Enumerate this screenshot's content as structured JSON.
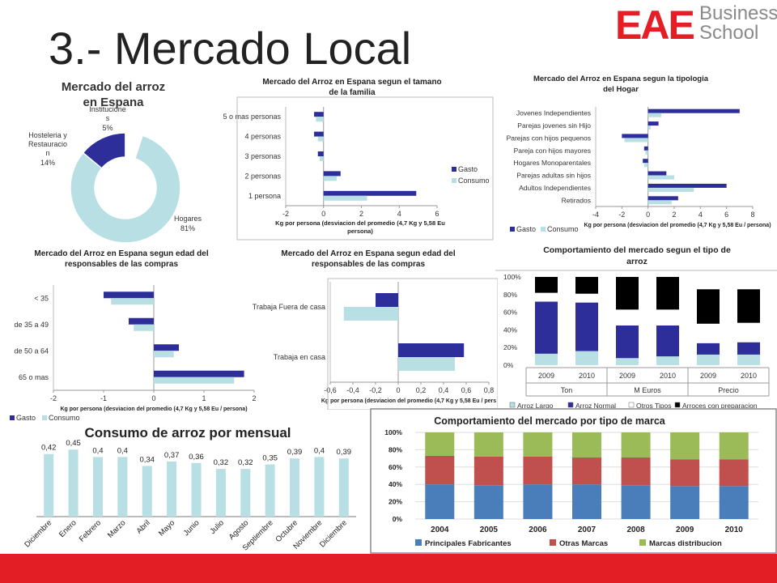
{
  "slide": {
    "title": "3.- Mercado Local",
    "brand_main": "EAE",
    "brand_line1": "Business",
    "brand_line2": "School",
    "colors": {
      "brand_red": "#e31e24",
      "gasto": "#2e2e9a",
      "consumo": "#b7dfe4",
      "black": "#000000",
      "blue_marca": "#4a7ebb",
      "red_marca": "#c0504d",
      "green_marca": "#9bbb59"
    }
  },
  "chart_data": [
    {
      "id": "donut",
      "type": "pie",
      "title": "Mercado del arroz en Espana",
      "slices": [
        {
          "label": "Hogares",
          "value": 81,
          "pct": "81%"
        },
        {
          "label": "Hosteleria y Restauracion",
          "value": 14,
          "pct": "14%"
        },
        {
          "label": "Instituciones",
          "value": 5,
          "pct": "5%"
        }
      ]
    },
    {
      "id": "family",
      "type": "bar",
      "orientation": "horizontal",
      "title_line1": "Mercado del Arroz en Espana segun el tamano",
      "title_line2": "de la familia",
      "categories": [
        "5 o mas  personas",
        "4 personas",
        "3 personas",
        "2 personas",
        "1 persona"
      ],
      "series": [
        {
          "name": "Gasto",
          "values": [
            -0.5,
            -0.5,
            -0.3,
            0.9,
            4.9
          ]
        },
        {
          "name": "Consumo",
          "values": [
            -0.4,
            -0.3,
            -0.2,
            0.7,
            2.3
          ]
        }
      ],
      "xlim": [
        -2,
        6
      ],
      "ticks": [
        "-2",
        "0",
        "2",
        "4",
        "6"
      ],
      "xlabel_line1": "Kg por persona (desviacion del promedio (4,7 Kg y 5,58 Eu",
      "xlabel_line2": "persona)"
    },
    {
      "id": "hogar",
      "type": "bar",
      "orientation": "horizontal",
      "title_line1": "Mercado del Arroz en Espana segun la tipologia",
      "title_line2": "del Hogar",
      "categories": [
        "Jovenes Independientes",
        "Parejas jovenes sin Hijo",
        "Parejas con hijos pequenos",
        "Pareja con hijos mayores",
        "Hogares Monoparentales",
        "Parejas adultas sin hijos",
        "Adultos Independientes",
        "Retirados"
      ],
      "series": [
        {
          "name": "Gasto",
          "values": [
            7,
            0.8,
            -2,
            -0.3,
            -0.4,
            1.4,
            6,
            2.3
          ]
        },
        {
          "name": "Consumo",
          "values": [
            1,
            0.2,
            -1.8,
            -0.2,
            -0.3,
            2,
            3.5,
            1.8
          ]
        }
      ],
      "xlim": [
        -4,
        8
      ],
      "ticks": [
        "-4",
        "-2",
        "0",
        "2",
        "4",
        "6",
        "8"
      ],
      "xlabel": "Kg por persona (desviacion del promedio (4,7 Kg y 5,58 Eu / persona)"
    },
    {
      "id": "edad",
      "type": "bar",
      "orientation": "horizontal",
      "title_line1": "Mercado del Arroz en Espana segun edad del",
      "title_line2": "responsables de las compras",
      "categories": [
        "< 35",
        "de 35 a 49",
        "de 50 a 64",
        "65 o mas"
      ],
      "series": [
        {
          "name": "Gasto",
          "values": [
            -1,
            -0.5,
            0.5,
            1.8
          ]
        },
        {
          "name": "Consumo",
          "values": [
            -0.85,
            -0.4,
            0.4,
            1.6
          ]
        }
      ],
      "xlim": [
        -2,
        2
      ],
      "ticks": [
        "-2",
        "-1",
        "0",
        "1",
        "2"
      ],
      "xlabel": "Kg por persona (desviacion del promedio (4,7 Kg y 5,58 Eu / persona)"
    },
    {
      "id": "trabajo",
      "type": "bar",
      "orientation": "horizontal",
      "title_line1": "Mercado del Arroz en Espana segun edad del",
      "title_line2": "responsables de las compras",
      "categories": [
        "Trabaja Fuera de casa",
        "Trabaja en casa"
      ],
      "series": [
        {
          "name": "Gasto",
          "values": [
            -0.2,
            0.58
          ]
        },
        {
          "name": "Consumo",
          "values": [
            -0.48,
            0.5
          ]
        }
      ],
      "xlim": [
        -0.6,
        0.8
      ],
      "ticks": [
        "-0,6",
        "-0,4",
        "-0,2",
        "0",
        "0,2",
        "0,4",
        "0,6",
        "0,8"
      ],
      "xlabel": "Kg por persona (desviacion del promedio (4,7 Kg y 5,58 Eu / pers"
    },
    {
      "id": "tipo",
      "type": "bar",
      "stacked": true,
      "title_line1": "Comportamiento del mercado segun el tipo de",
      "title_line2": "arroz",
      "categories": [
        "2009",
        "2010",
        "2009",
        "2010",
        "2009",
        "2010"
      ],
      "groups": [
        "Ton",
        "M Euros",
        "Precio"
      ],
      "series": [
        {
          "name": "Arroz Largo",
          "values": [
            13,
            16,
            8,
            10,
            12,
            12
          ]
        },
        {
          "name": "Arroz Normal",
          "values": [
            59,
            55,
            37,
            35,
            13,
            14
          ]
        },
        {
          "name": "Otros Tipos",
          "values": [
            10,
            10,
            18,
            18,
            22,
            22
          ]
        },
        {
          "name": "Arroces con preparacion",
          "values": [
            18,
            19,
            37,
            37,
            39,
            38
          ]
        }
      ],
      "ylim": [
        0,
        100
      ],
      "ticks": [
        "0%",
        "20%",
        "40%",
        "60%",
        "80%",
        "100%"
      ]
    },
    {
      "id": "mensual",
      "type": "bar",
      "title": "Consumo de arroz por mensual",
      "categories": [
        "Diciembre",
        "Enero",
        "Febrero",
        "Marzo",
        "Abril",
        "Mayo",
        "Junio",
        "Julio",
        "Agosto",
        "Septiembre",
        "Octubre",
        "Noviembre",
        "Diciembre"
      ],
      "values": [
        0.42,
        0.45,
        0.4,
        0.4,
        0.34,
        0.37,
        0.36,
        0.32,
        0.32,
        0.35,
        0.39,
        0.4,
        0.39
      ],
      "labels": [
        "0,42",
        "0,45",
        "0,4",
        "0,4",
        "0,34",
        "0,37",
        "0,36",
        "0,32",
        "0,32",
        "0,35",
        "0,39",
        "0,4",
        "0,39"
      ]
    },
    {
      "id": "marca",
      "type": "bar",
      "stacked": true,
      "title": "Comportamiento del mercado por tipo de marca",
      "categories": [
        "2004",
        "2005",
        "2006",
        "2007",
        "2008",
        "2009",
        "2010"
      ],
      "series": [
        {
          "name": "Principales Fabricantes",
          "values": [
            40,
            39,
            40,
            40,
            39,
            38,
            38
          ]
        },
        {
          "name": "Otras Marcas",
          "values": [
            33,
            33,
            32,
            31,
            32,
            31,
            31
          ]
        },
        {
          "name": "Marcas distribucion",
          "values": [
            27,
            28,
            28,
            29,
            29,
            31,
            31
          ]
        }
      ],
      "ylim": [
        0,
        100
      ],
      "ticks": [
        "0%",
        "20%",
        "40%",
        "60%",
        "80%",
        "100%"
      ]
    }
  ]
}
